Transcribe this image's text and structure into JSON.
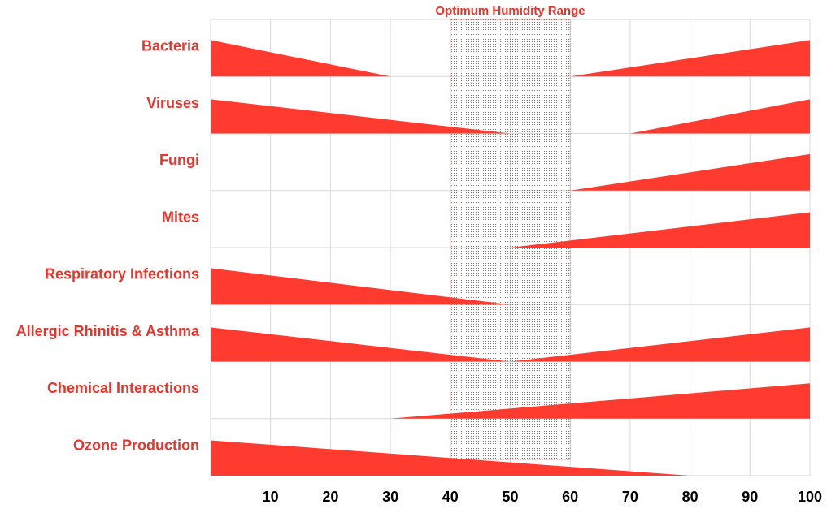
{
  "chart_data": {
    "type": "area",
    "title": "Optimum Humidity Range",
    "xlabel": "",
    "ylabel": "",
    "xlim": [
      0,
      100
    ],
    "x_ticks": [
      "10",
      "20",
      "30",
      "40",
      "50",
      "60",
      "70",
      "80",
      "90",
      "100"
    ],
    "grid": true,
    "optimum_range": [
      40,
      60
    ],
    "max_level": 1.0,
    "series": [
      {
        "name": "Bacteria",
        "wedges": [
          {
            "x": [
              0,
              30
            ],
            "level": [
              0.66,
              0
            ]
          },
          {
            "x": [
              60,
              100
            ],
            "level": [
              0,
              0.66
            ]
          }
        ]
      },
      {
        "name": "Viruses",
        "wedges": [
          {
            "x": [
              0,
              50
            ],
            "level": [
              0.62,
              0
            ]
          },
          {
            "x": [
              70,
              100
            ],
            "level": [
              0,
              0.62
            ]
          }
        ]
      },
      {
        "name": "Fungi",
        "wedges": [
          {
            "x": [
              60,
              100
            ],
            "level": [
              0,
              0.66
            ]
          }
        ]
      },
      {
        "name": "Mites",
        "wedges": [
          {
            "x": [
              50,
              100
            ],
            "level": [
              0,
              0.64
            ]
          }
        ]
      },
      {
        "name": "Respiratory Infections",
        "wedges": [
          {
            "x": [
              0,
              50
            ],
            "level": [
              0.66,
              0
            ]
          }
        ]
      },
      {
        "name": "Allergic Rhinitis & Asthma",
        "wedges": [
          {
            "x": [
              0,
              50
            ],
            "level": [
              0.62,
              0
            ]
          },
          {
            "x": [
              50,
              100
            ],
            "level": [
              0,
              0.62
            ]
          }
        ]
      },
      {
        "name": "Chemical Interactions",
        "wedges": [
          {
            "x": [
              30,
              100
            ],
            "level": [
              0,
              0.64
            ]
          }
        ]
      },
      {
        "name": "Ozone Production",
        "wedges": [
          {
            "x": [
              0,
              80
            ],
            "level": [
              0.64,
              0
            ]
          }
        ]
      }
    ]
  },
  "colors": {
    "wedge": "#ff3b30",
    "label": "#e8352c",
    "grid": "#d8d8d8",
    "optimum_edge": "#e8352c",
    "optimum_dots": "#777777",
    "tick": "#000000"
  }
}
